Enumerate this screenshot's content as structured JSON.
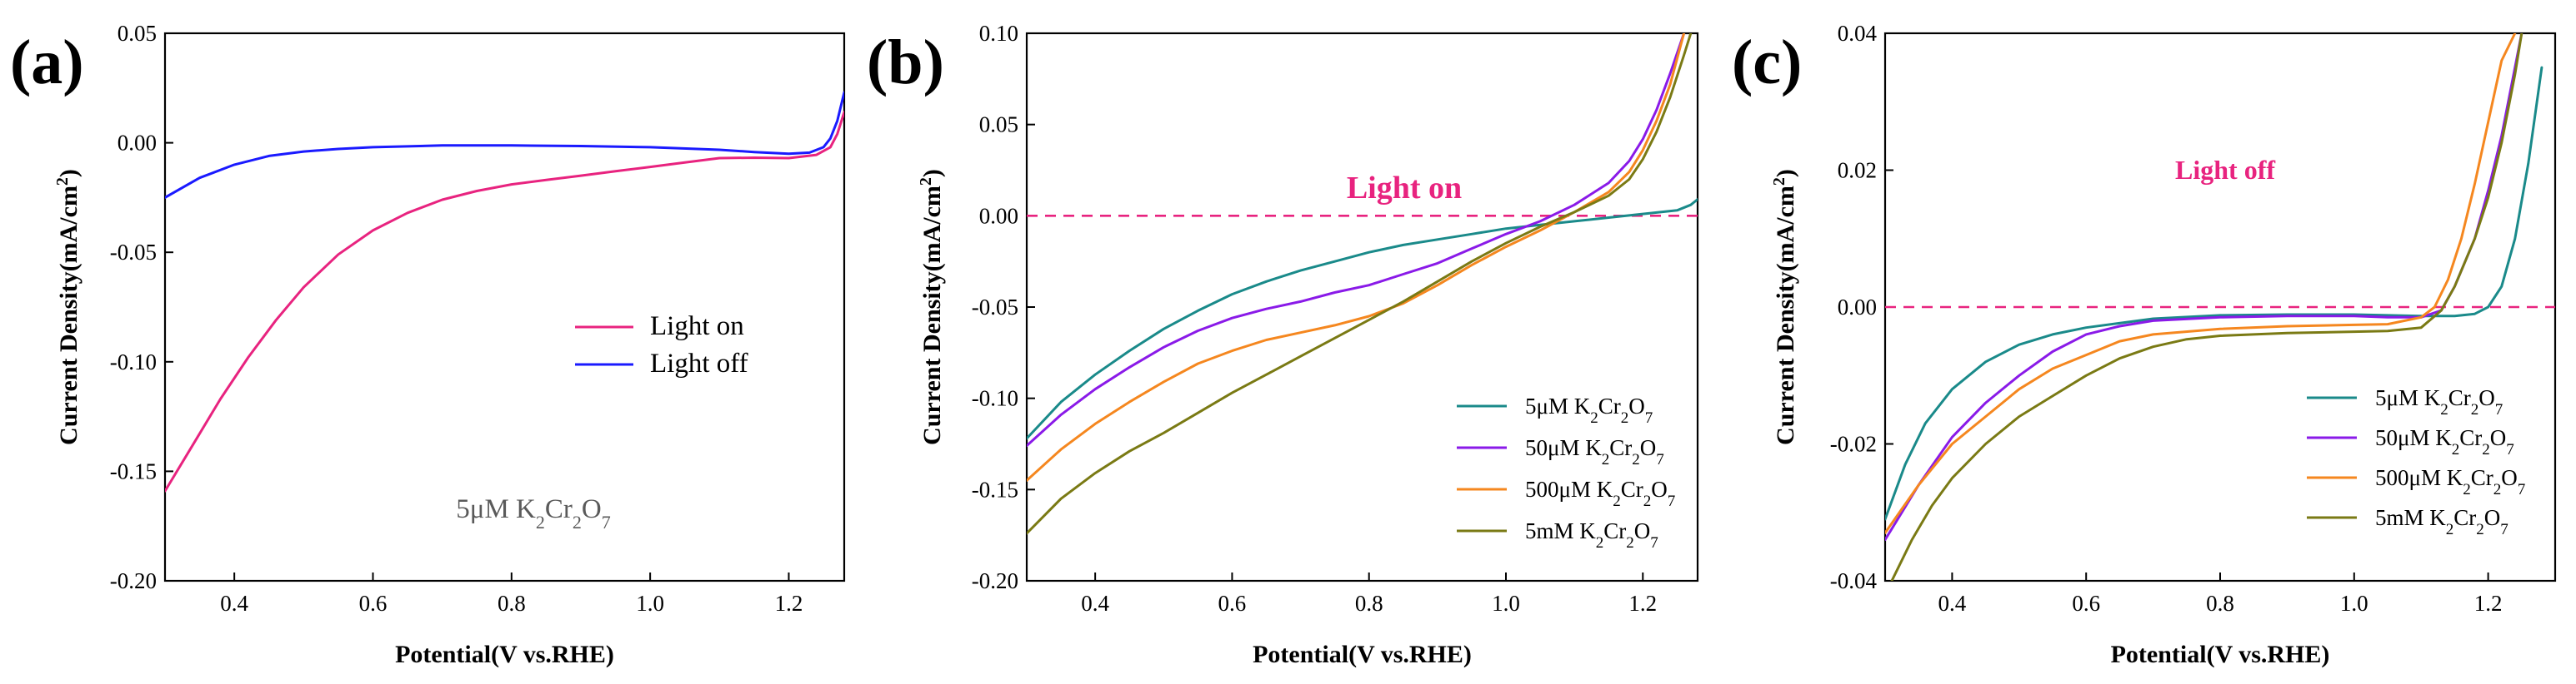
{
  "chart_data": [
    {
      "panel": "(a)",
      "type": "line",
      "xlabel": "Potential(V vs.RHE)",
      "ylabel": "Current Density(mA/cm²)",
      "xlim": [
        0.3,
        1.28
      ],
      "ylim": [
        -0.2,
        0.05
      ],
      "xticks": [
        "0.4",
        "0.6",
        "0.8",
        "1.0",
        "1.2"
      ],
      "xtick_values": [
        0.4,
        0.6,
        0.8,
        1.0,
        1.2
      ],
      "yticks": [
        "0.05",
        "0.00",
        "-0.05",
        "-0.10",
        "-0.15",
        "-0.20"
      ],
      "ytick_values": [
        0.05,
        0.0,
        -0.05,
        -0.1,
        -0.15,
        -0.2
      ],
      "annotation": "5μM K₂Cr₂O₇",
      "legend_position": "center-right",
      "series": [
        {
          "name": "Light on",
          "color": "#e8237f",
          "x": [
            0.3,
            0.34,
            0.38,
            0.42,
            0.46,
            0.5,
            0.55,
            0.6,
            0.65,
            0.7,
            0.75,
            0.8,
            0.85,
            0.9,
            0.95,
            1.0,
            1.05,
            1.1,
            1.15,
            1.2,
            1.24,
            1.26,
            1.27,
            1.28
          ],
          "y": [
            -0.159,
            -0.138,
            -0.117,
            -0.098,
            -0.081,
            -0.066,
            -0.051,
            -0.04,
            -0.032,
            -0.026,
            -0.022,
            -0.019,
            -0.017,
            -0.015,
            -0.013,
            -0.011,
            -0.009,
            -0.007,
            -0.0068,
            -0.007,
            -0.0055,
            -0.002,
            0.004,
            0.014
          ]
        },
        {
          "name": "Light off",
          "color": "#1a1aff",
          "x": [
            0.3,
            0.35,
            0.4,
            0.45,
            0.5,
            0.55,
            0.6,
            0.7,
            0.8,
            0.9,
            1.0,
            1.1,
            1.15,
            1.2,
            1.23,
            1.25,
            1.26,
            1.27,
            1.28
          ],
          "y": [
            -0.025,
            -0.016,
            -0.01,
            -0.006,
            -0.004,
            -0.0028,
            -0.002,
            -0.0012,
            -0.0012,
            -0.0015,
            -0.002,
            -0.0032,
            -0.0042,
            -0.005,
            -0.0045,
            -0.002,
            0.002,
            0.01,
            0.023
          ]
        }
      ]
    },
    {
      "panel": "(b)",
      "type": "line",
      "xlabel": "Potential(V vs.RHE)",
      "ylabel": "Current Density(mA/cm²)",
      "xlim": [
        0.3,
        1.28
      ],
      "ylim": [
        -0.2,
        0.1
      ],
      "xticks": [
        "0.4",
        "0.6",
        "0.8",
        "1.0",
        "1.2"
      ],
      "xtick_values": [
        0.4,
        0.6,
        0.8,
        1.0,
        1.2
      ],
      "yticks": [
        "0.10",
        "0.05",
        "0.00",
        "-0.05",
        "-0.10",
        "-0.15",
        "-0.20"
      ],
      "ytick_values": [
        0.1,
        0.05,
        0.0,
        -0.05,
        -0.1,
        -0.15,
        -0.2
      ],
      "annotation": "Light on",
      "reference_line": {
        "y": 0.0,
        "style": "dashed",
        "color": "#e8237f"
      },
      "legend_position": "bottom-right",
      "series": [
        {
          "name": "5μM K₂Cr₂O₇",
          "color": "#1a8a8a",
          "x": [
            0.3,
            0.35,
            0.4,
            0.45,
            0.5,
            0.55,
            0.6,
            0.65,
            0.7,
            0.75,
            0.8,
            0.85,
            0.9,
            0.95,
            1.0,
            1.05,
            1.1,
            1.15,
            1.2,
            1.25,
            1.27,
            1.28
          ],
          "y": [
            -0.122,
            -0.102,
            -0.087,
            -0.074,
            -0.062,
            -0.052,
            -0.043,
            -0.036,
            -0.03,
            -0.025,
            -0.02,
            -0.016,
            -0.013,
            -0.01,
            -0.007,
            -0.005,
            -0.003,
            -0.001,
            0.001,
            0.003,
            0.006,
            0.009
          ]
        },
        {
          "name": "50μM K₂Cr₂O₇",
          "color": "#8a1ae8",
          "x": [
            0.3,
            0.35,
            0.4,
            0.45,
            0.5,
            0.55,
            0.6,
            0.65,
            0.7,
            0.75,
            0.8,
            0.85,
            0.9,
            0.95,
            1.0,
            1.05,
            1.1,
            1.15,
            1.18,
            1.2,
            1.22,
            1.24,
            1.26
          ],
          "y": [
            -0.126,
            -0.109,
            -0.095,
            -0.083,
            -0.072,
            -0.063,
            -0.056,
            -0.051,
            -0.047,
            -0.042,
            -0.038,
            -0.032,
            -0.026,
            -0.018,
            -0.01,
            -0.003,
            0.006,
            0.018,
            0.03,
            0.042,
            0.058,
            0.078,
            0.1
          ]
        },
        {
          "name": "500μM K₂Cr₂O₇",
          "color": "#f5871f",
          "x": [
            0.3,
            0.35,
            0.4,
            0.45,
            0.5,
            0.55,
            0.6,
            0.65,
            0.7,
            0.75,
            0.8,
            0.85,
            0.9,
            0.95,
            1.0,
            1.05,
            1.1,
            1.15,
            1.18,
            1.2,
            1.22,
            1.24,
            1.26
          ],
          "y": [
            -0.145,
            -0.128,
            -0.114,
            -0.102,
            -0.091,
            -0.081,
            -0.074,
            -0.068,
            -0.064,
            -0.06,
            -0.055,
            -0.048,
            -0.038,
            -0.027,
            -0.017,
            -0.008,
            0.002,
            0.013,
            0.024,
            0.036,
            0.052,
            0.072,
            0.1
          ]
        },
        {
          "name": "5mM K₂Cr₂O₇",
          "color": "#7a7a14",
          "x": [
            0.3,
            0.35,
            0.4,
            0.45,
            0.5,
            0.55,
            0.6,
            0.65,
            0.7,
            0.75,
            0.8,
            0.85,
            0.9,
            0.95,
            1.0,
            1.05,
            1.1,
            1.15,
            1.18,
            1.2,
            1.22,
            1.24,
            1.26,
            1.27
          ],
          "y": [
            -0.174,
            -0.155,
            -0.141,
            -0.129,
            -0.119,
            -0.108,
            -0.097,
            -0.087,
            -0.077,
            -0.067,
            -0.057,
            -0.047,
            -0.036,
            -0.025,
            -0.015,
            -0.006,
            0.002,
            0.011,
            0.02,
            0.031,
            0.046,
            0.065,
            0.088,
            0.1
          ]
        }
      ]
    },
    {
      "panel": "(c)",
      "type": "line",
      "xlabel": "Potential(V vs.RHE)",
      "ylabel": "Current Density(mA/cm²)",
      "xlim": [
        0.3,
        1.3
      ],
      "ylim": [
        -0.04,
        0.04
      ],
      "xticks": [
        "0.4",
        "0.6",
        "0.8",
        "1.0",
        "1.2"
      ],
      "xtick_values": [
        0.4,
        0.6,
        0.8,
        1.0,
        1.2
      ],
      "yticks": [
        "0.04",
        "0.02",
        "0.00",
        "-0.02",
        "-0.04"
      ],
      "ytick_values": [
        0.04,
        0.02,
        0.0,
        -0.02,
        -0.04
      ],
      "annotation": "Light off",
      "reference_line": {
        "y": 0.0,
        "style": "dashed",
        "color": "#e8237f"
      },
      "legend_position": "bottom-right",
      "series": [
        {
          "name": "5μM K₂Cr₂O₇",
          "color": "#1a8a8a",
          "x": [
            0.3,
            0.33,
            0.36,
            0.4,
            0.45,
            0.5,
            0.55,
            0.6,
            0.7,
            0.8,
            0.9,
            1.0,
            1.1,
            1.15,
            1.18,
            1.2,
            1.22,
            1.24,
            1.26,
            1.28
          ],
          "y": [
            -0.031,
            -0.023,
            -0.017,
            -0.012,
            -0.008,
            -0.0055,
            -0.004,
            -0.003,
            -0.0017,
            -0.0012,
            -0.0011,
            -0.0011,
            -0.0013,
            -0.0013,
            -0.001,
            0.0,
            0.003,
            0.01,
            0.021,
            0.035
          ]
        },
        {
          "name": "50μM K₂Cr₂O₇",
          "color": "#8a1ae8",
          "x": [
            0.3,
            0.35,
            0.4,
            0.45,
            0.5,
            0.55,
            0.6,
            0.65,
            0.7,
            0.8,
            0.9,
            1.0,
            1.05,
            1.1,
            1.13,
            1.15,
            1.18,
            1.2,
            1.22,
            1.24,
            1.25
          ],
          "y": [
            -0.034,
            -0.026,
            -0.019,
            -0.014,
            -0.01,
            -0.0065,
            -0.004,
            -0.0028,
            -0.002,
            -0.0015,
            -0.0013,
            -0.0013,
            -0.0015,
            -0.0015,
            -0.0005,
            0.003,
            0.01,
            0.017,
            0.025,
            0.035,
            0.04
          ]
        },
        {
          "name": "500μM K₂Cr₂O₇",
          "color": "#f5871f",
          "x": [
            0.3,
            0.35,
            0.4,
            0.45,
            0.5,
            0.55,
            0.6,
            0.65,
            0.7,
            0.8,
            0.9,
            1.0,
            1.05,
            1.1,
            1.12,
            1.14,
            1.16,
            1.18,
            1.2,
            1.22,
            1.24
          ],
          "y": [
            -0.033,
            -0.026,
            -0.02,
            -0.016,
            -0.012,
            -0.009,
            -0.007,
            -0.005,
            -0.004,
            -0.0032,
            -0.0028,
            -0.0026,
            -0.0025,
            -0.0015,
            0.0,
            0.004,
            0.01,
            0.018,
            0.027,
            0.036,
            0.04
          ]
        },
        {
          "name": "5mM K₂Cr₂O₇",
          "color": "#7a7a14",
          "x": [
            0.31,
            0.34,
            0.37,
            0.4,
            0.45,
            0.5,
            0.55,
            0.6,
            0.65,
            0.7,
            0.75,
            0.8,
            0.9,
            1.0,
            1.05,
            1.1,
            1.13,
            1.15,
            1.18,
            1.2,
            1.22,
            1.24,
            1.25
          ],
          "y": [
            -0.04,
            -0.034,
            -0.029,
            -0.025,
            -0.02,
            -0.016,
            -0.013,
            -0.01,
            -0.0075,
            -0.0058,
            -0.0047,
            -0.0042,
            -0.0038,
            -0.0036,
            -0.0035,
            -0.003,
            -0.0005,
            0.003,
            0.01,
            0.016,
            0.024,
            0.034,
            0.04
          ]
        }
      ]
    }
  ]
}
